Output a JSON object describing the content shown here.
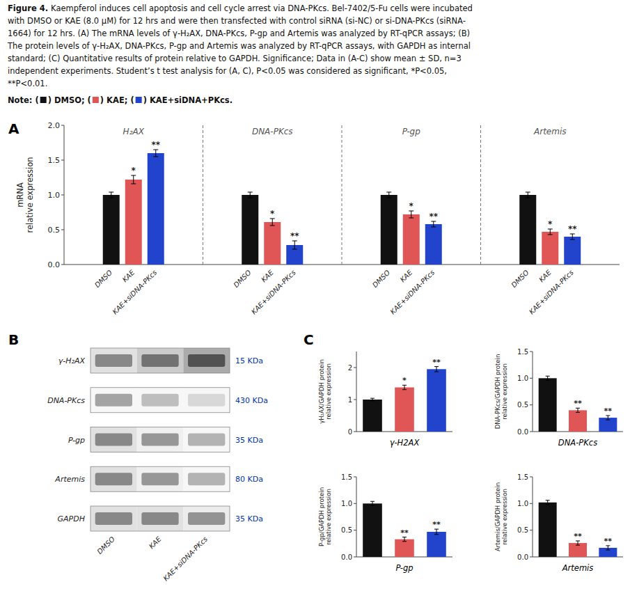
{
  "caption": {
    "label": "Figure 4.",
    "lines": [
      "Kaempferol induces cell apoptosis and cell cycle arrest via DNA-PKcs. Bel-7402/5-Fu cells were incubated",
      "with DMSO or KAE (8.0 μM) for 12 hrs and were then transfected with control siRNA (si-NC) or si-DNA-PKcs (siRNA-",
      "1664) for 12 hrs. (A) The mRNA levels of γ-H₂AX, DNA-PKcs, P-gp and Artemis was analyzed by RT-qPCR assays; (B)",
      "The protein levels of γ-H₂AX, DNA-PKcs, P-gp and Artemis was analyzed by RT-qPCR assays, with GAPDH as internal",
      "standard; (C) Quantitative results of protein relative to GAPDH.  Significance; Data in (A-C) show mean ± SD, n=3",
      "independent experiments.  Student’s t test analysis for (A, C), P<0.05 was considered as significant, *P<0.05,",
      "**P<0.01."
    ]
  },
  "note": [
    "Note: (",
    ") DMSO; (",
    ") KAE; (",
    ") KAE+siDNA+PKcs."
  ],
  "note_colors": [
    "#111111",
    "#e05555",
    "#2244cc"
  ],
  "chart_data": [
    {
      "type": "bar",
      "panel": "A",
      "categories": [
        "H₂AX",
        "DNA-PKcs",
        "P-gp",
        "Artemis"
      ],
      "series": [
        {
          "name": "DMSO",
          "color": "#111111",
          "values": [
            1.0,
            1.0,
            1.0,
            1.0
          ],
          "errors": [
            0.04,
            0.04,
            0.04,
            0.04
          ]
        },
        {
          "name": "KAE",
          "color": "#e05555",
          "values": [
            1.22,
            0.61,
            0.72,
            0.47
          ],
          "errors": [
            0.06,
            0.05,
            0.05,
            0.04
          ],
          "significance": [
            "*",
            "*",
            "*",
            "*"
          ]
        },
        {
          "name": "KAE+siDNA-PKcs",
          "color": "#2244cc",
          "values": [
            1.6,
            0.28,
            0.58,
            0.4
          ],
          "errors": [
            0.05,
            0.06,
            0.04,
            0.04
          ],
          "significance": [
            "**",
            "**",
            "**",
            "**"
          ]
        }
      ],
      "y_label": "mRNA\nrelative expression",
      "ylim": [
        0.0,
        2.0
      ],
      "yticks": [
        {
          "value": 0,
          "label": "0.0"
        },
        0.5,
        {
          "value": 1,
          "label": "1.0"
        },
        1.5,
        {
          "value": 2,
          "label": "2.0"
        }
      ]
    },
    {
      "type": "heatmap",
      "panel": "B",
      "rows": [
        "γ-H₂AX",
        "DNA-PKcs",
        "P-gp",
        "Artemis",
        "GAPDH"
      ],
      "columns": [
        "DMSO",
        "KAE",
        "KAE+siDNA-PKcs"
      ],
      "row_labels_right": [
        "15 KDa",
        "430 KDa",
        "35 KDa",
        "80 KDa",
        "35 KDa"
      ],
      "cells": [
        [
          0.55,
          0.65,
          0.8
        ],
        [
          0.42,
          0.3,
          0.18
        ],
        [
          0.55,
          0.48,
          0.35
        ],
        [
          0.55,
          0.48,
          0.35
        ],
        [
          0.55,
          0.55,
          0.5
        ]
      ]
    },
    {
      "type": "bar",
      "panel": "C",
      "categories": [
        null,
        null,
        null
      ],
      "values": [
        1.0,
        1.38,
        1.95
      ],
      "errors": [
        0.04,
        0.07,
        0.08
      ],
      "significance": [
        null,
        "*",
        "**"
      ],
      "colors": [
        "#111111",
        "#e05555",
        "#2244cc"
      ],
      "x_label": "γ-H2AX",
      "y_label": "γH₂AX/GAPDH protein\nrelative expression",
      "ylim": [
        0,
        2.5
      ],
      "yticks": [
        0,
        1,
        2
      ],
      "tick_labels": "y"
    },
    {
      "type": "bar",
      "categories": [
        null,
        null,
        null
      ],
      "values": [
        1.0,
        0.4,
        0.26
      ],
      "errors": [
        0.04,
        0.04,
        0.04
      ],
      "significance": [
        null,
        "**",
        "**"
      ],
      "colors": [
        "#111111",
        "#e05555",
        "#2244cc"
      ],
      "x_label": "DNA-PKcs",
      "y_label": "DNA-PKcs/GAPDH protein\nrelative expression",
      "ylim": [
        0.0,
        1.5
      ],
      "yticks": [
        {
          "value": 0,
          "label": "0.0"
        },
        0.5,
        {
          "value": 1,
          "label": "1.0"
        },
        1.5
      ],
      "tick_labels": "y"
    },
    {
      "type": "bar",
      "categories": [
        null,
        null,
        null
      ],
      "values": [
        1.0,
        0.33,
        0.47
      ],
      "errors": [
        0.04,
        0.04,
        0.05
      ],
      "significance": [
        null,
        "**",
        "**"
      ],
      "colors": [
        "#111111",
        "#e05555",
        "#2244cc"
      ],
      "x_label": "P-gp",
      "y_label": "P-gp/GAPDH protein\nrelative expression",
      "ylim": [
        0.0,
        1.5
      ],
      "yticks": [
        {
          "value": 0,
          "label": "0.0"
        },
        0.5,
        {
          "value": 1,
          "label": "1.0"
        },
        1.5
      ],
      "tick_labels": "y"
    },
    {
      "type": "bar",
      "categories": [
        null,
        null,
        null
      ],
      "values": [
        1.02,
        0.26,
        0.17
      ],
      "errors": [
        0.04,
        0.04,
        0.04
      ],
      "significance": [
        null,
        "**",
        "**"
      ],
      "colors": [
        "#111111",
        "#e05555",
        "#2244cc"
      ],
      "x_label": "Artemis",
      "y_label": "Artemis/GAPDH protein\nrelative expression",
      "ylim": [
        0.0,
        1.5
      ],
      "yticks": [
        {
          "value": 0,
          "label": "0.0"
        },
        0.5,
        {
          "value": 1,
          "label": "1.0"
        },
        1.5
      ],
      "tick_labels": "y"
    }
  ]
}
